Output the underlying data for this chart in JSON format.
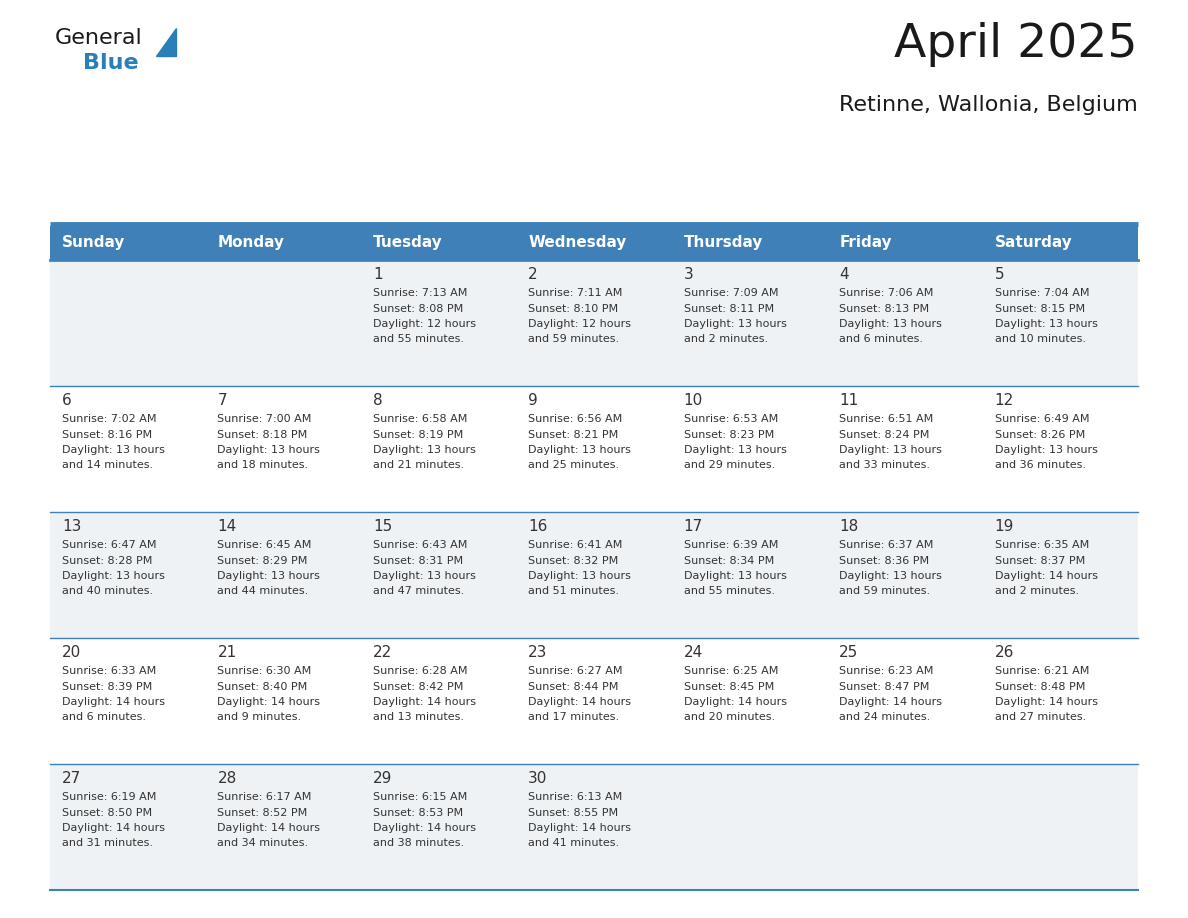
{
  "title": "April 2025",
  "subtitle": "Retinne, Wallonia, Belgium",
  "header_color": "#4080b8",
  "header_text_color": "#ffffff",
  "cell_bg_gray": "#eff2f5",
  "cell_bg_white": "#ffffff",
  "line_color": "#4080b8",
  "text_color": "#333333",
  "days_of_week": [
    "Sunday",
    "Monday",
    "Tuesday",
    "Wednesday",
    "Thursday",
    "Friday",
    "Saturday"
  ],
  "calendar_data": [
    [
      {
        "day": "",
        "info": ""
      },
      {
        "day": "",
        "info": ""
      },
      {
        "day": "1",
        "info": "Sunrise: 7:13 AM\nSunset: 8:08 PM\nDaylight: 12 hours\nand 55 minutes."
      },
      {
        "day": "2",
        "info": "Sunrise: 7:11 AM\nSunset: 8:10 PM\nDaylight: 12 hours\nand 59 minutes."
      },
      {
        "day": "3",
        "info": "Sunrise: 7:09 AM\nSunset: 8:11 PM\nDaylight: 13 hours\nand 2 minutes."
      },
      {
        "day": "4",
        "info": "Sunrise: 7:06 AM\nSunset: 8:13 PM\nDaylight: 13 hours\nand 6 minutes."
      },
      {
        "day": "5",
        "info": "Sunrise: 7:04 AM\nSunset: 8:15 PM\nDaylight: 13 hours\nand 10 minutes."
      }
    ],
    [
      {
        "day": "6",
        "info": "Sunrise: 7:02 AM\nSunset: 8:16 PM\nDaylight: 13 hours\nand 14 minutes."
      },
      {
        "day": "7",
        "info": "Sunrise: 7:00 AM\nSunset: 8:18 PM\nDaylight: 13 hours\nand 18 minutes."
      },
      {
        "day": "8",
        "info": "Sunrise: 6:58 AM\nSunset: 8:19 PM\nDaylight: 13 hours\nand 21 minutes."
      },
      {
        "day": "9",
        "info": "Sunrise: 6:56 AM\nSunset: 8:21 PM\nDaylight: 13 hours\nand 25 minutes."
      },
      {
        "day": "10",
        "info": "Sunrise: 6:53 AM\nSunset: 8:23 PM\nDaylight: 13 hours\nand 29 minutes."
      },
      {
        "day": "11",
        "info": "Sunrise: 6:51 AM\nSunset: 8:24 PM\nDaylight: 13 hours\nand 33 minutes."
      },
      {
        "day": "12",
        "info": "Sunrise: 6:49 AM\nSunset: 8:26 PM\nDaylight: 13 hours\nand 36 minutes."
      }
    ],
    [
      {
        "day": "13",
        "info": "Sunrise: 6:47 AM\nSunset: 8:28 PM\nDaylight: 13 hours\nand 40 minutes."
      },
      {
        "day": "14",
        "info": "Sunrise: 6:45 AM\nSunset: 8:29 PM\nDaylight: 13 hours\nand 44 minutes."
      },
      {
        "day": "15",
        "info": "Sunrise: 6:43 AM\nSunset: 8:31 PM\nDaylight: 13 hours\nand 47 minutes."
      },
      {
        "day": "16",
        "info": "Sunrise: 6:41 AM\nSunset: 8:32 PM\nDaylight: 13 hours\nand 51 minutes."
      },
      {
        "day": "17",
        "info": "Sunrise: 6:39 AM\nSunset: 8:34 PM\nDaylight: 13 hours\nand 55 minutes."
      },
      {
        "day": "18",
        "info": "Sunrise: 6:37 AM\nSunset: 8:36 PM\nDaylight: 13 hours\nand 59 minutes."
      },
      {
        "day": "19",
        "info": "Sunrise: 6:35 AM\nSunset: 8:37 PM\nDaylight: 14 hours\nand 2 minutes."
      }
    ],
    [
      {
        "day": "20",
        "info": "Sunrise: 6:33 AM\nSunset: 8:39 PM\nDaylight: 14 hours\nand 6 minutes."
      },
      {
        "day": "21",
        "info": "Sunrise: 6:30 AM\nSunset: 8:40 PM\nDaylight: 14 hours\nand 9 minutes."
      },
      {
        "day": "22",
        "info": "Sunrise: 6:28 AM\nSunset: 8:42 PM\nDaylight: 14 hours\nand 13 minutes."
      },
      {
        "day": "23",
        "info": "Sunrise: 6:27 AM\nSunset: 8:44 PM\nDaylight: 14 hours\nand 17 minutes."
      },
      {
        "day": "24",
        "info": "Sunrise: 6:25 AM\nSunset: 8:45 PM\nDaylight: 14 hours\nand 20 minutes."
      },
      {
        "day": "25",
        "info": "Sunrise: 6:23 AM\nSunset: 8:47 PM\nDaylight: 14 hours\nand 24 minutes."
      },
      {
        "day": "26",
        "info": "Sunrise: 6:21 AM\nSunset: 8:48 PM\nDaylight: 14 hours\nand 27 minutes."
      }
    ],
    [
      {
        "day": "27",
        "info": "Sunrise: 6:19 AM\nSunset: 8:50 PM\nDaylight: 14 hours\nand 31 minutes."
      },
      {
        "day": "28",
        "info": "Sunrise: 6:17 AM\nSunset: 8:52 PM\nDaylight: 14 hours\nand 34 minutes."
      },
      {
        "day": "29",
        "info": "Sunrise: 6:15 AM\nSunset: 8:53 PM\nDaylight: 14 hours\nand 38 minutes."
      },
      {
        "day": "30",
        "info": "Sunrise: 6:13 AM\nSunset: 8:55 PM\nDaylight: 14 hours\nand 41 minutes."
      },
      {
        "day": "",
        "info": ""
      },
      {
        "day": "",
        "info": ""
      },
      {
        "day": "",
        "info": ""
      }
    ]
  ],
  "logo_color_general": "#1a1a1a",
  "logo_color_blue": "#2980b9",
  "logo_color_triangle": "#2980b9"
}
